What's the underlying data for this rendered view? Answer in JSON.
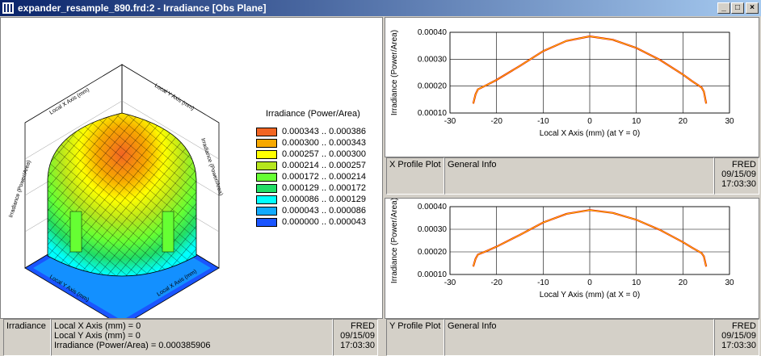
{
  "window": {
    "title": "expander_resample_890.frd:2 - Irradiance   [Obs Plane]",
    "minimize": "_",
    "restore": "□",
    "close": "×"
  },
  "plot3d": {
    "axis_x_label": "Local X Axis (mm)",
    "axis_y_label": "Local Y Axis (mm)",
    "axis_z_label": "Irradiance (Power/Area)",
    "legend": {
      "title": "Irradiance (Power/Area)",
      "items": [
        {
          "label": "0.000343 .. 0.000386",
          "color": "#f26522"
        },
        {
          "label": "0.000300 .. 0.000343",
          "color": "#f7a800"
        },
        {
          "label": "0.000257 .. 0.000300",
          "color": "#ffff00"
        },
        {
          "label": "0.000214 .. 0.000257",
          "color": "#b5e61d"
        },
        {
          "label": "0.000172 .. 0.000214",
          "color": "#66ff33"
        },
        {
          "label": "0.000129 .. 0.000172",
          "color": "#22dd66"
        },
        {
          "label": "0.000086 .. 0.000129",
          "color": "#00ffff"
        },
        {
          "label": "0.000043 .. 0.000086",
          "color": "#11aaff"
        },
        {
          "label": "0.000000 .. 0.000043",
          "color": "#1a55ff"
        }
      ]
    },
    "info": {
      "tab": "Irradiance",
      "line1": "Local X Axis (mm) = 0",
      "line2": "Local Y Axis (mm) = 0",
      "line3": "Irradiance (Power/Area) = 0.000385906",
      "stamp_app": "FRED",
      "stamp_date": "09/15/09",
      "stamp_time": "17:03:30"
    }
  },
  "xprofile": {
    "info": {
      "tab": "X Profile Plot",
      "general": "General Info",
      "stamp_app": "FRED",
      "stamp_date": "09/15/09",
      "stamp_time": "17:03:30"
    }
  },
  "yprofile": {
    "info": {
      "tab": "Y Profile Plot",
      "general": "General Info",
      "stamp_app": "FRED",
      "stamp_date": "09/15/09",
      "stamp_time": "17:03:30"
    }
  },
  "chart_data": [
    {
      "type": "line",
      "xlabel": "Local X Axis (mm) (at Y = 0)",
      "ylabel": "Irradiance (Power/Area)",
      "xlim": [
        -30,
        30
      ],
      "ylim": [
        0.0001,
        0.0004
      ],
      "xticks": [
        "-30",
        "-20",
        "-10",
        "0",
        "10",
        "20",
        "30"
      ],
      "yticks": [
        "0.00010",
        "0.00020",
        "0.00030",
        "0.00040"
      ],
      "series": [
        {
          "x": [
            -25,
            -24.5,
            -24,
            -22,
            -20,
            -15,
            -10,
            -5,
            0,
            5,
            10,
            15,
            20,
            22,
            24,
            24.5,
            25
          ],
          "values": [
            0.000135,
            0.00017,
            0.000188,
            0.000205,
            0.000223,
            0.000275,
            0.00033,
            0.000368,
            0.000385,
            0.000372,
            0.000342,
            0.000298,
            0.000243,
            0.000218,
            0.000195,
            0.00018,
            0.000135
          ]
        }
      ]
    },
    {
      "type": "line",
      "xlabel": "Local Y Axis (mm) (at X = 0)",
      "ylabel": "Irradiance (Power/Area)",
      "xlim": [
        -30,
        30
      ],
      "ylim": [
        0.0001,
        0.0004
      ],
      "xticks": [
        "-30",
        "-20",
        "-10",
        "0",
        "10",
        "20",
        "30"
      ],
      "yticks": [
        "0.00010",
        "0.00020",
        "0.00030",
        "0.00040"
      ],
      "series": [
        {
          "x": [
            -25,
            -24.5,
            -24,
            -22,
            -20,
            -15,
            -10,
            -5,
            0,
            5,
            10,
            15,
            20,
            22,
            24,
            24.5,
            25
          ],
          "values": [
            0.000135,
            0.00017,
            0.000188,
            0.000205,
            0.000223,
            0.000275,
            0.00033,
            0.000368,
            0.000385,
            0.000372,
            0.000342,
            0.000298,
            0.000243,
            0.000218,
            0.000195,
            0.00018,
            0.000135
          ]
        }
      ]
    }
  ]
}
